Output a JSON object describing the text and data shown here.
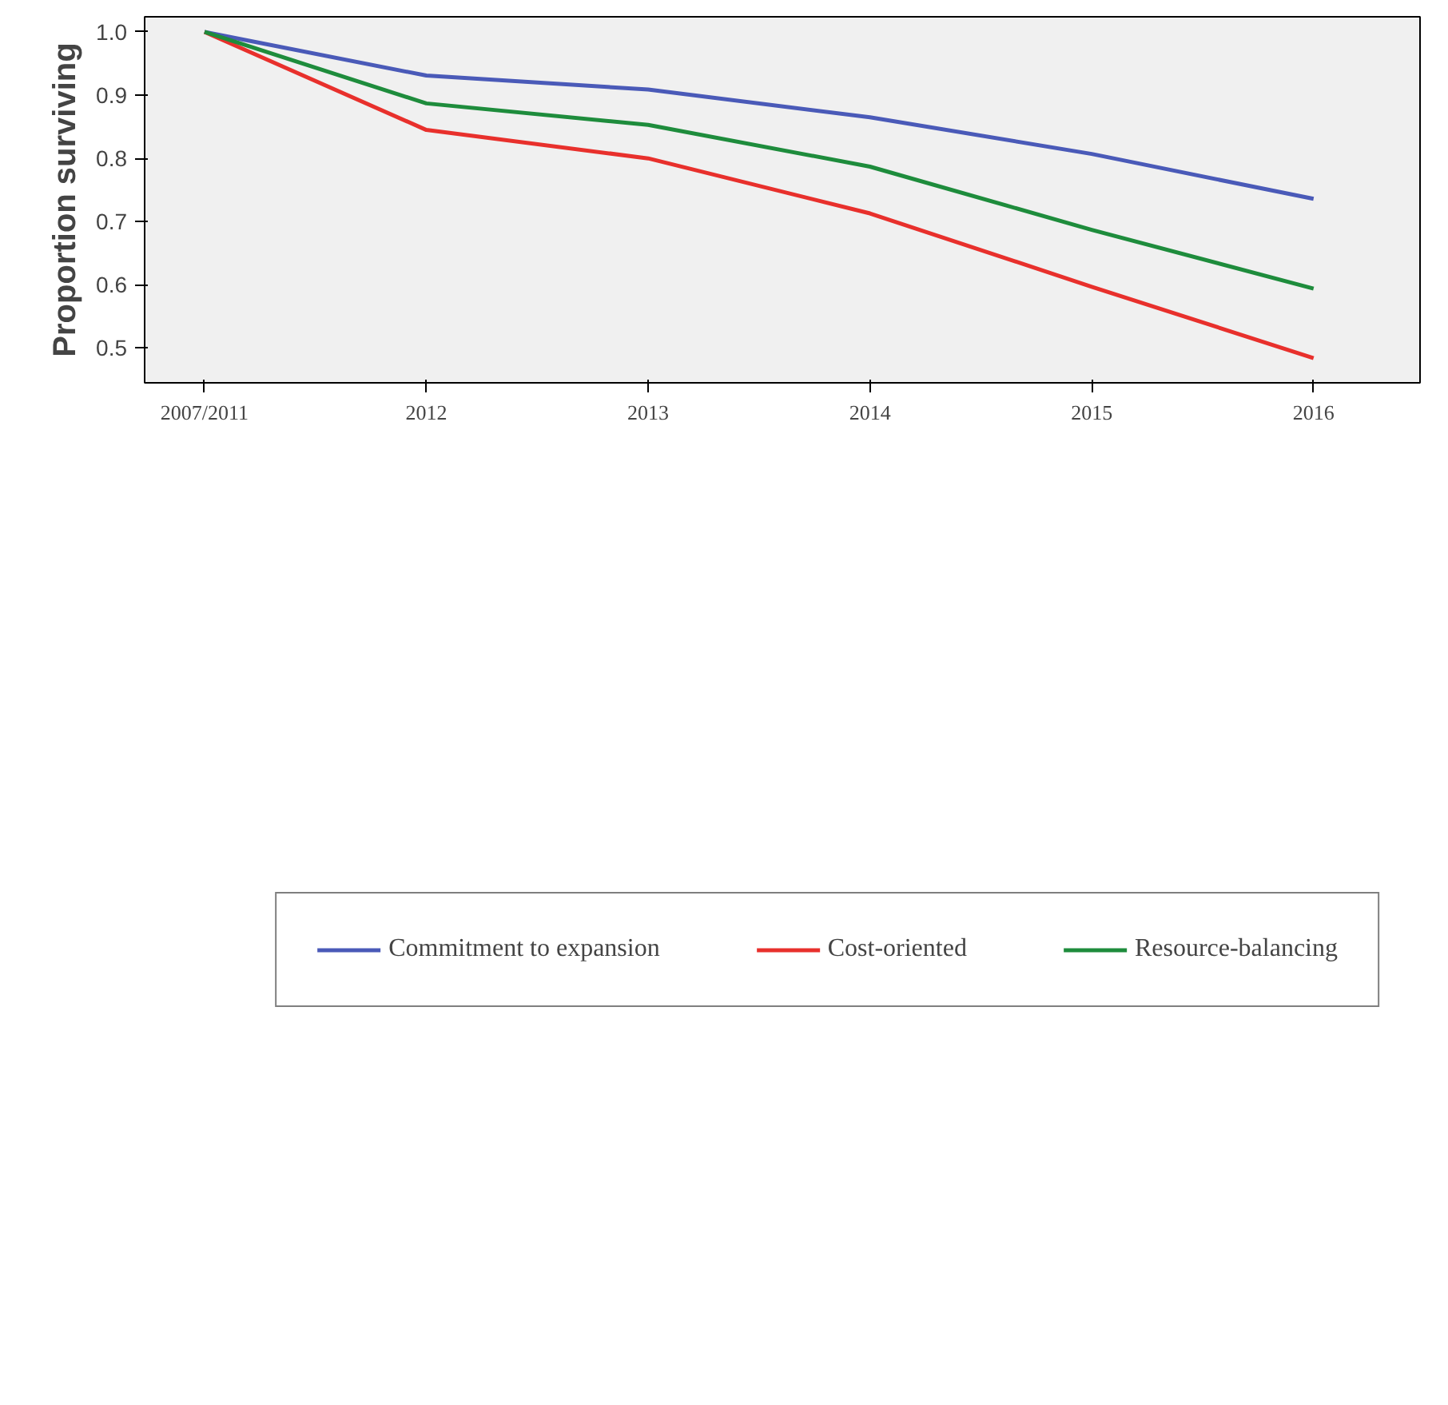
{
  "chart_data": {
    "type": "line",
    "ylabel": "Proportion surviving",
    "categories": [
      "2007/2011",
      "2012",
      "2013",
      "2014",
      "2015",
      "2016"
    ],
    "series": [
      {
        "name": "Commitment to expansion",
        "color": "#4a5ab8",
        "values": [
          1.0,
          0.931,
          0.909,
          0.865,
          0.807,
          0.736
        ]
      },
      {
        "name": "Cost-oriented",
        "color": "#e8302c",
        "values": [
          1.0,
          0.845,
          0.8,
          0.713,
          0.597,
          0.484
        ]
      },
      {
        "name": "Resource-balancing",
        "color": "#1e8c3c",
        "values": [
          1.0,
          0.887,
          0.853,
          0.787,
          0.687,
          0.594
        ]
      }
    ],
    "ylim": [
      0.445,
      1.024
    ],
    "yticks": [
      {
        "value": 0.5,
        "label": "0.5"
      },
      {
        "value": 0.6,
        "label": "0.6"
      },
      {
        "value": 0.7,
        "label": "0.7"
      },
      {
        "value": 0.8,
        "label": "0.8"
      },
      {
        "value": 0.9,
        "label": "0.9"
      },
      {
        "value": 1.0,
        "label": "1.0"
      }
    ],
    "grid": false,
    "legend": "bottom",
    "marker": "none",
    "line_style": "solid"
  }
}
